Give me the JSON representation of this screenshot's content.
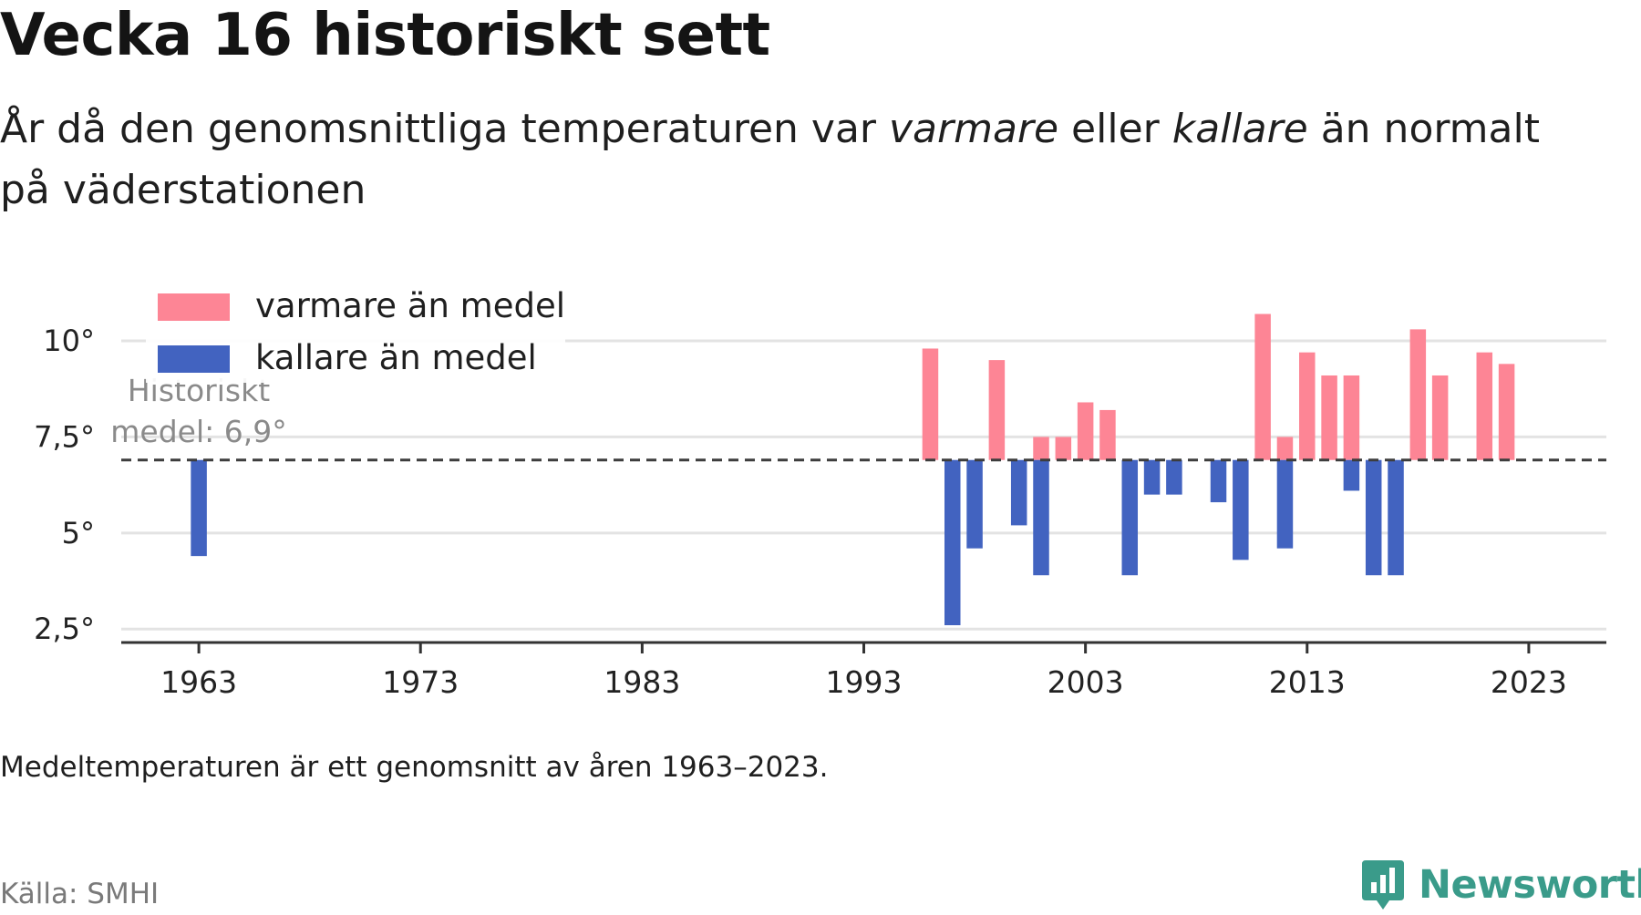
{
  "title": "Vecka 16 historiskt sett",
  "subtitle": {
    "part1": "År då den genomsnittliga temperaturen var ",
    "warm_word": "varmare",
    "part2": " eller ",
    "cold_word": "kallare",
    "part3": " än normalt på väderstationen"
  },
  "note": "Medeltemperaturen är ett genomsnitt av åren 1963–2023.",
  "source": "Källa: SMHI",
  "brand": "Newsworthy",
  "colors": {
    "warm": "#fd8595",
    "cold": "#4263c0",
    "grid": "#e3e3e3",
    "axis": "#333333",
    "mean_line": "#3d3d3d",
    "brand": "#3a9b8a"
  },
  "chart_data": {
    "type": "bar",
    "baseline": 6.9,
    "baseline_label": [
      "Historiskt",
      "medel: 6,9°"
    ],
    "x_ticks": [
      1963,
      1973,
      1983,
      1993,
      2003,
      2013,
      2023
    ],
    "y_ticks": [
      2.5,
      5,
      7.5,
      10
    ],
    "y_tick_labels": [
      "2,5°",
      "5°",
      "7,5°",
      "10°"
    ],
    "ylim": [
      2.15,
      11.4
    ],
    "xlim": [
      1959.5,
      2026.5
    ],
    "legend": {
      "position": "top-left",
      "entries": [
        "varmare än medel",
        "kallare än medel"
      ]
    },
    "series": [
      {
        "name": "varmare än medel",
        "x": [
          1996,
          1999,
          2001,
          2002,
          2003,
          2004,
          2011,
          2012,
          2013,
          2014,
          2015,
          2018,
          2019,
          2021,
          2022
        ],
        "values": [
          9.8,
          9.5,
          7.5,
          7.5,
          8.4,
          8.2,
          10.7,
          7.5,
          9.7,
          9.1,
          9.1,
          10.3,
          9.1,
          9.7,
          9.4
        ]
      },
      {
        "name": "kallare än medel",
        "x": [
          1963,
          1997,
          1998,
          2000,
          2001,
          2005,
          2006,
          2007,
          2009,
          2010,
          2012,
          2015,
          2016,
          2017
        ],
        "values": [
          4.4,
          2.6,
          4.6,
          5.2,
          3.9,
          3.9,
          6.0,
          6.0,
          5.8,
          4.3,
          4.6,
          6.1,
          3.9,
          3.9
        ]
      }
    ]
  }
}
